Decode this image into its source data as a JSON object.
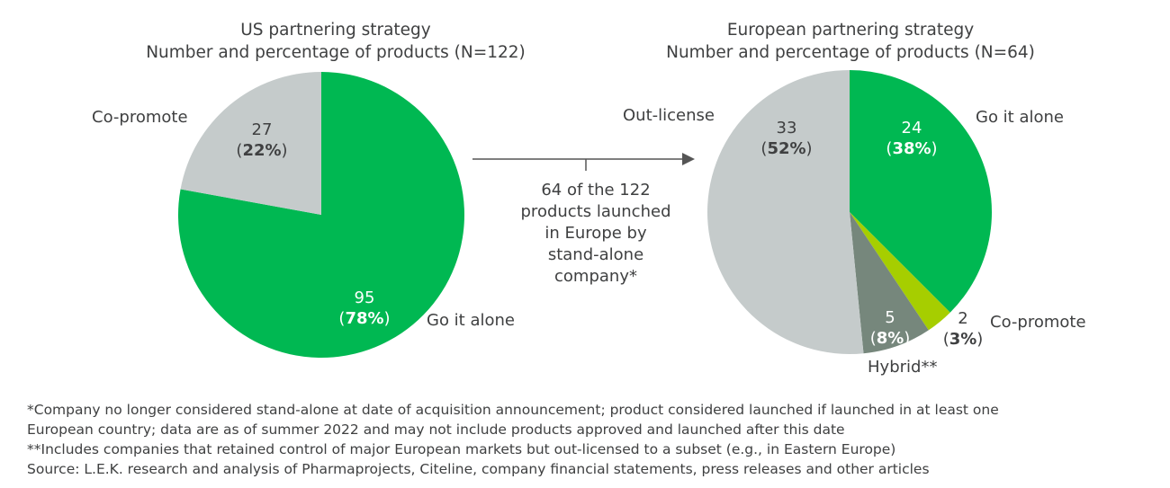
{
  "chart_data": [
    {
      "type": "pie",
      "title": "US partnering strategy",
      "subtitle": "Number and percentage of products (N=122)",
      "slices": [
        {
          "label": "Go it alone",
          "value": 95,
          "percent": "78%",
          "color": "#00B852"
        },
        {
          "label": "Co-promote",
          "value": 27,
          "percent": "22%",
          "color": "#C5CBCB"
        }
      ]
    },
    {
      "type": "pie",
      "title": "European partnering strategy",
      "subtitle": "Number and percentage of products (N=64)",
      "slices": [
        {
          "label": "Go it alone",
          "value": 24,
          "percent": "38%",
          "color": "#00B852"
        },
        {
          "label": "Co-promote",
          "value": 2,
          "percent": "3%",
          "color": "#A6CE00"
        },
        {
          "label": "Hybrid**",
          "value": 5,
          "percent": "8%",
          "color": "#76877C"
        },
        {
          "label": "Out-license",
          "value": 33,
          "percent": "52%",
          "color": "#C5CBCB"
        }
      ]
    }
  ],
  "arrow_note": [
    "64 of the 122",
    "products launched",
    "in Europe by",
    "stand-alone",
    "company*"
  ],
  "footnotes": [
    "*Company no longer considered stand-alone at date of acquisition announcement; product considered launched if launched in at least one",
    "European country; data are as of summer 2022 and may not include products approved and launched after this date",
    "**Includes companies that retained control of major European markets but out-licensed to a subset (e.g., in Eastern Europe)",
    "Source: L.E.K. research and analysis of Pharmaprojects, Citeline, company financial statements, press releases and other articles"
  ]
}
